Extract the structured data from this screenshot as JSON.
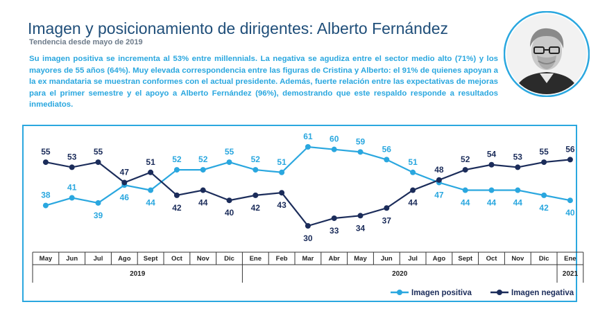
{
  "header": {
    "title": "Imagen y posicionamiento de dirigentes: Alberto Fernández",
    "subtitle": "Tendencia desde mayo de 2019",
    "description": "Su imagen positiva se incrementa al 53% entre millennials. La negativa se agudiza entre el sector medio alto (71%) y los mayores de 55 años (64%). Muy elevada correspondencia entre las figuras de Cristina y Alberto: el 91% de quienes apoyan a la ex mandataria se muestran conformes con el actual presidente. Además, fuerte relación entre las expectativas de mejoras para el primer semestre y el apoyo a Alberto Fernández (96%), demostrando que este respaldo responde a resultados inmediatos."
  },
  "colors": {
    "positive": "#2aa7df",
    "negative": "#1b2c5a",
    "title": "#1f4e79",
    "border": "#2aa7df"
  },
  "chart_data": {
    "type": "line",
    "categories": [
      "May",
      "Jun",
      "Jul",
      "Ago",
      "Sept",
      "Oct",
      "Nov",
      "Dic",
      "Ene",
      "Feb",
      "Mar",
      "Abr",
      "May",
      "Jun",
      "Jul",
      "Ago",
      "Sept",
      "Oct",
      "Nov",
      "Dic",
      "Ene"
    ],
    "year_groups": [
      {
        "label": "2019",
        "start": 0,
        "end": 7
      },
      {
        "label": "2020",
        "start": 8,
        "end": 19
      },
      {
        "label": "2021",
        "start": 20,
        "end": 20
      }
    ],
    "series": [
      {
        "name": "Imagen positiva",
        "color": "#2aa7df",
        "values": [
          38,
          41,
          39,
          46,
          44,
          52,
          52,
          55,
          52,
          51,
          61,
          60,
          59,
          56,
          51,
          47,
          44,
          44,
          44,
          42,
          40
        ]
      },
      {
        "name": "Imagen negativa",
        "color": "#1b2c5a",
        "values": [
          55,
          53,
          55,
          47,
          51,
          42,
          44,
          40,
          42,
          43,
          30,
          33,
          34,
          37,
          44,
          48,
          52,
          54,
          53,
          55,
          56
        ]
      }
    ],
    "ylim": [
      30,
      61
    ],
    "legend_position": "bottom-right",
    "grid": false
  }
}
